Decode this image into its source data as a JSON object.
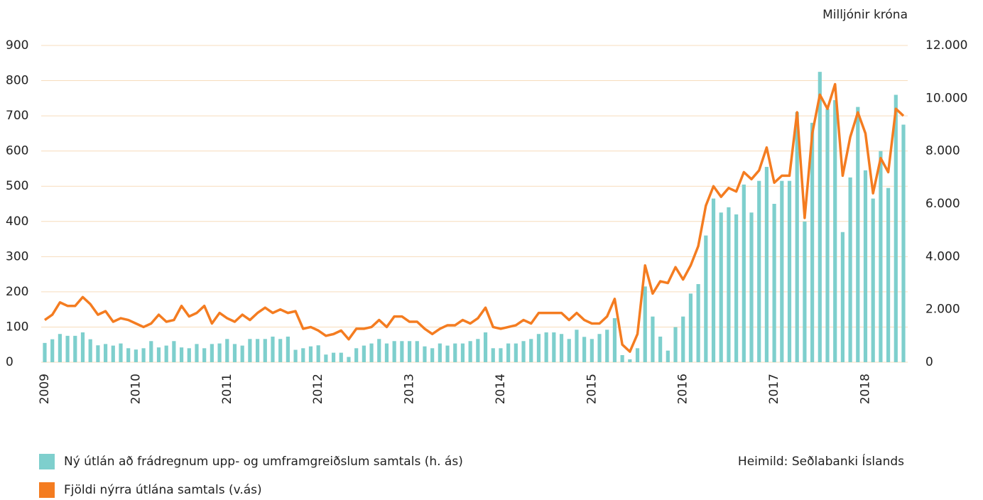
{
  "chart_data": {
    "type": "combo",
    "y2label": "Milljónir króna",
    "source": "Heimild: Seðlabanki Íslands",
    "categories": [
      "2009",
      null,
      null,
      null,
      null,
      null,
      null,
      null,
      null,
      null,
      null,
      null,
      "2010",
      null,
      null,
      null,
      null,
      null,
      null,
      null,
      null,
      null,
      null,
      null,
      "2011",
      null,
      null,
      null,
      null,
      null,
      null,
      null,
      null,
      null,
      null,
      null,
      "2012",
      null,
      null,
      null,
      null,
      null,
      null,
      null,
      null,
      null,
      null,
      null,
      "2013",
      null,
      null,
      null,
      null,
      null,
      null,
      null,
      null,
      null,
      null,
      null,
      "2014",
      null,
      null,
      null,
      null,
      null,
      null,
      null,
      null,
      null,
      null,
      null,
      "2015",
      null,
      null,
      null,
      null,
      null,
      null,
      null,
      null,
      null,
      null,
      null,
      "2016",
      null,
      null,
      null,
      null,
      null,
      null,
      null,
      null,
      null,
      null,
      null,
      "2017",
      null,
      null,
      null,
      null,
      null,
      null,
      null,
      null,
      null,
      null,
      null,
      "2018",
      null,
      null,
      null,
      null,
      null
    ],
    "series": [
      {
        "name": "Ný útlán að frádregnum upp- og umframgreiðslum samtals (h. ás)",
        "type": "bar",
        "axis": "y2",
        "color": "#7ecfcd",
        "values": [
          730,
          870,
          1070,
          1000,
          1000,
          1130,
          870,
          640,
          690,
          630,
          710,
          530,
          480,
          530,
          800,
          560,
          630,
          800,
          560,
          530,
          690,
          530,
          690,
          710,
          880,
          690,
          630,
          880,
          880,
          880,
          970,
          880,
          970,
          470,
          530,
          600,
          640,
          290,
          360,
          360,
          200,
          530,
          630,
          710,
          880,
          710,
          800,
          800,
          800,
          800,
          600,
          530,
          710,
          630,
          710,
          710,
          800,
          880,
          1130,
          530,
          530,
          710,
          710,
          800,
          880,
          1070,
          1130,
          1130,
          1070,
          880,
          1230,
          960,
          880,
          1070,
          1230,
          1670,
          270,
          110,
          530,
          2870,
          1730,
          970,
          440,
          1330,
          1730,
          2600,
          2960,
          4800,
          6200,
          5670,
          5870,
          5600,
          6730,
          5670,
          6870,
          7400,
          6000,
          6870,
          6870,
          9470,
          5330,
          9070,
          11000,
          9600,
          9930,
          4930,
          7000,
          9670,
          7270,
          6200,
          8000,
          6600,
          10130,
          9000
        ]
      },
      {
        "name": "Fjöldi nýrra útlána samtals (v.ás)",
        "type": "line",
        "color": "#f47c20",
        "values": [
          120,
          135,
          170,
          160,
          160,
          185,
          165,
          135,
          145,
          115,
          125,
          120,
          110,
          100,
          110,
          135,
          115,
          120,
          160,
          130,
          140,
          160,
          110,
          140,
          125,
          115,
          135,
          120,
          140,
          155,
          140,
          150,
          140,
          145,
          95,
          100,
          90,
          75,
          80,
          90,
          65,
          95,
          95,
          100,
          120,
          100,
          130,
          130,
          115,
          115,
          95,
          80,
          95,
          105,
          105,
          120,
          110,
          125,
          155,
          100,
          95,
          100,
          105,
          120,
          110,
          140,
          140,
          140,
          140,
          120,
          140,
          120,
          110,
          110,
          130,
          180,
          50,
          30,
          80,
          275,
          195,
          230,
          225,
          270,
          235,
          275,
          330,
          445,
          500,
          470,
          495,
          485,
          540,
          520,
          545,
          610,
          510,
          530,
          530,
          710,
          410,
          650,
          760,
          720,
          790,
          530,
          640,
          710,
          650,
          480,
          580,
          540,
          720,
          700
        ]
      }
    ],
    "ylim": [
      0,
      900
    ],
    "yticks": [
      0,
      100,
      200,
      300,
      400,
      500,
      600,
      700,
      800,
      900
    ],
    "y2lim": [
      0,
      12000
    ],
    "y2ticks": [
      0,
      {
        "value": 2000,
        "label": "2.000"
      },
      {
        "value": 4000,
        "label": "4.000"
      },
      {
        "value": 6000,
        "label": "6.000"
      },
      {
        "value": 8000,
        "label": "8.000"
      },
      {
        "value": 10000,
        "label": "10.000"
      },
      {
        "value": 12000,
        "label": "12.000"
      }
    ],
    "grid": true
  }
}
